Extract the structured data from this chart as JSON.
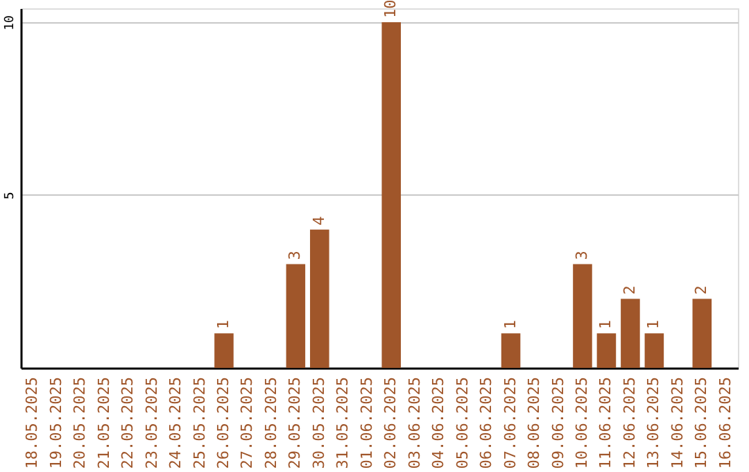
{
  "chart_data": {
    "type": "bar",
    "categories": [
      "18.05.2025",
      "19.05.2025",
      "20.05.2025",
      "21.05.2025",
      "22.05.2025",
      "23.05.2025",
      "24.05.2025",
      "25.05.2025",
      "26.05.2025",
      "27.05.2025",
      "28.05.2025",
      "29.05.2025",
      "30.05.2025",
      "31.05.2025",
      "01.06.2025",
      "02.06.2025",
      "03.06.2025",
      "04.06.2025",
      "05.06.2025",
      "06.06.2025",
      "07.06.2025",
      "08.06.2025",
      "09.06.2025",
      "10.06.2025",
      "11.06.2025",
      "12.06.2025",
      "13.06.2025",
      "14.06.2025",
      "15.06.2025",
      "16.06.2025"
    ],
    "values": [
      0,
      0,
      0,
      0,
      0,
      0,
      0,
      0,
      1,
      0,
      0,
      3,
      4,
      0,
      0,
      10,
      0,
      0,
      0,
      0,
      1,
      0,
      0,
      3,
      1,
      2,
      1,
      0,
      2,
      0
    ],
    "value_labels": [
      null,
      null,
      null,
      null,
      null,
      null,
      null,
      null,
      "1",
      null,
      null,
      "3",
      "4",
      null,
      null,
      "10",
      null,
      null,
      null,
      null,
      "1",
      null,
      null,
      "3",
      "1",
      "2",
      "1",
      null,
      "2",
      null
    ],
    "color": "#a0562a",
    "ylim": [
      0,
      10.4
    ],
    "yticks": [
      5,
      10
    ],
    "grid": "y"
  }
}
